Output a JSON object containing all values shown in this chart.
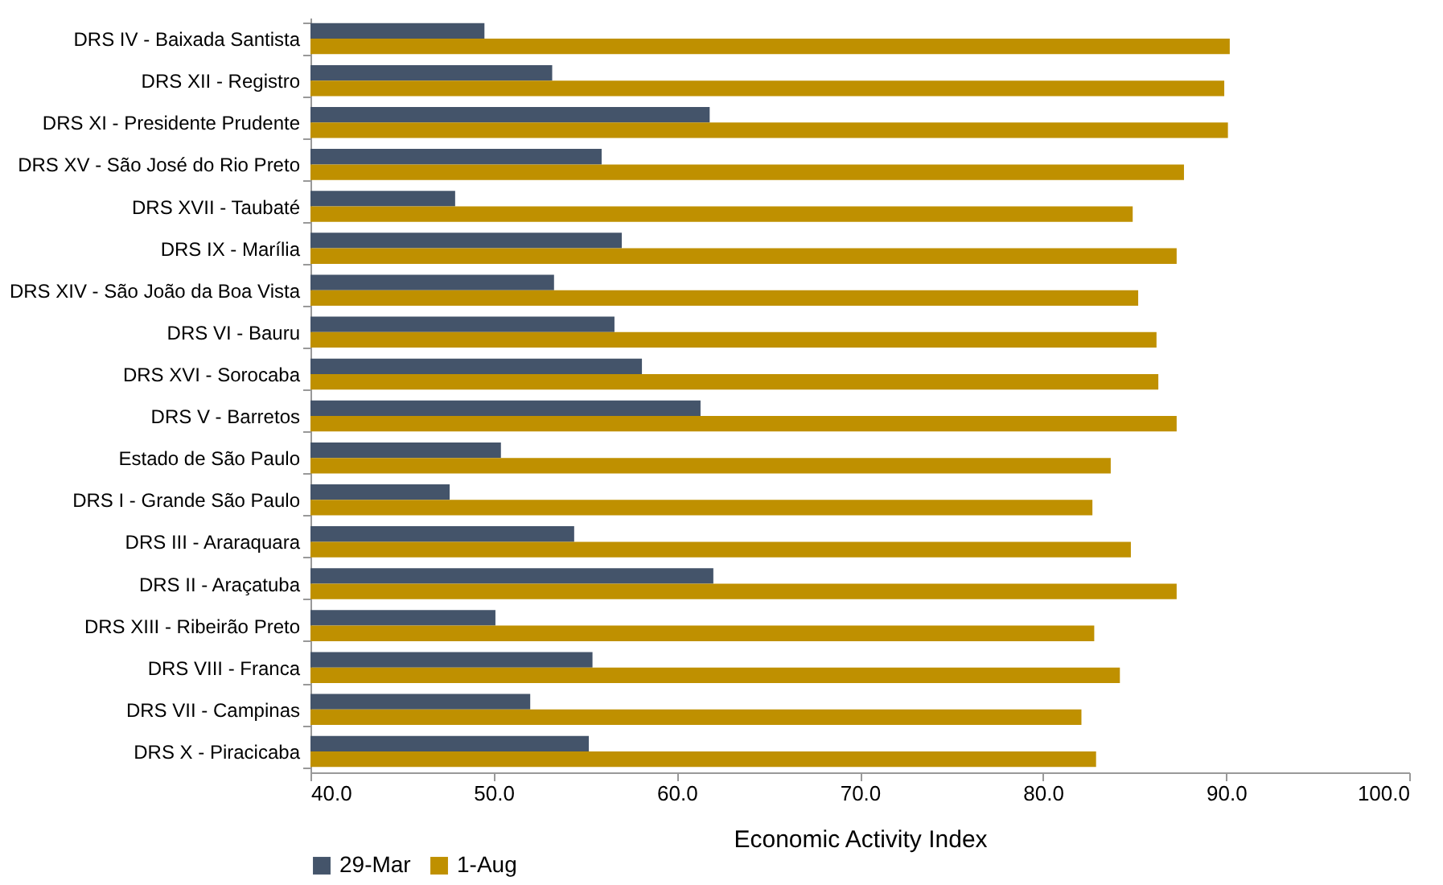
{
  "chart_data": {
    "type": "bar",
    "orientation": "horizontal",
    "xlabel": "Economic Activity Index",
    "categories": [
      "DRS IV - Baixada Santista",
      "DRS XII - Registro",
      "DRS XI - Presidente Prudente",
      "DRS XV - São José do Rio Preto",
      "DRS XVII - Taubaté",
      "DRS IX - Marília",
      "DRS XIV - São João da Boa Vista",
      "DRS VI - Bauru",
      "DRS XVI - Sorocaba",
      "DRS V - Barretos",
      "Estado de São Paulo",
      "DRS I - Grande São Paulo",
      "DRS III - Araraquara",
      "DRS II - Araçatuba",
      "DRS XIII - Ribeirão Preto",
      "DRS VIII - Franca",
      "DRS VII - Campinas",
      "DRS X - Piracicaba"
    ],
    "series": [
      {
        "name": "29-Mar",
        "color": "#44546a",
        "values": [
          49.5,
          53.2,
          61.8,
          55.9,
          47.9,
          57.0,
          53.3,
          56.6,
          58.1,
          61.3,
          50.4,
          47.6,
          54.4,
          62.0,
          50.1,
          55.4,
          52.0,
          55.2
        ]
      },
      {
        "name": "1-Aug",
        "color": "#bf9000",
        "values": [
          90.2,
          89.9,
          90.1,
          87.7,
          84.9,
          87.3,
          85.2,
          86.2,
          86.3,
          87.3,
          83.7,
          82.7,
          84.8,
          87.3,
          82.8,
          84.2,
          82.1,
          82.9
        ]
      }
    ],
    "xlim": [
      40,
      100
    ],
    "xticks": [
      {
        "value": 40,
        "label": "40.0"
      },
      {
        "value": 50,
        "label": "50.0"
      },
      {
        "value": 60,
        "label": "60.0"
      },
      {
        "value": 70,
        "label": "70.0"
      },
      {
        "value": 80,
        "label": "80.0"
      },
      {
        "value": 90,
        "label": "90.0"
      },
      {
        "value": 100,
        "label": "100.0"
      }
    ],
    "grid": false,
    "legend": "bottom"
  }
}
